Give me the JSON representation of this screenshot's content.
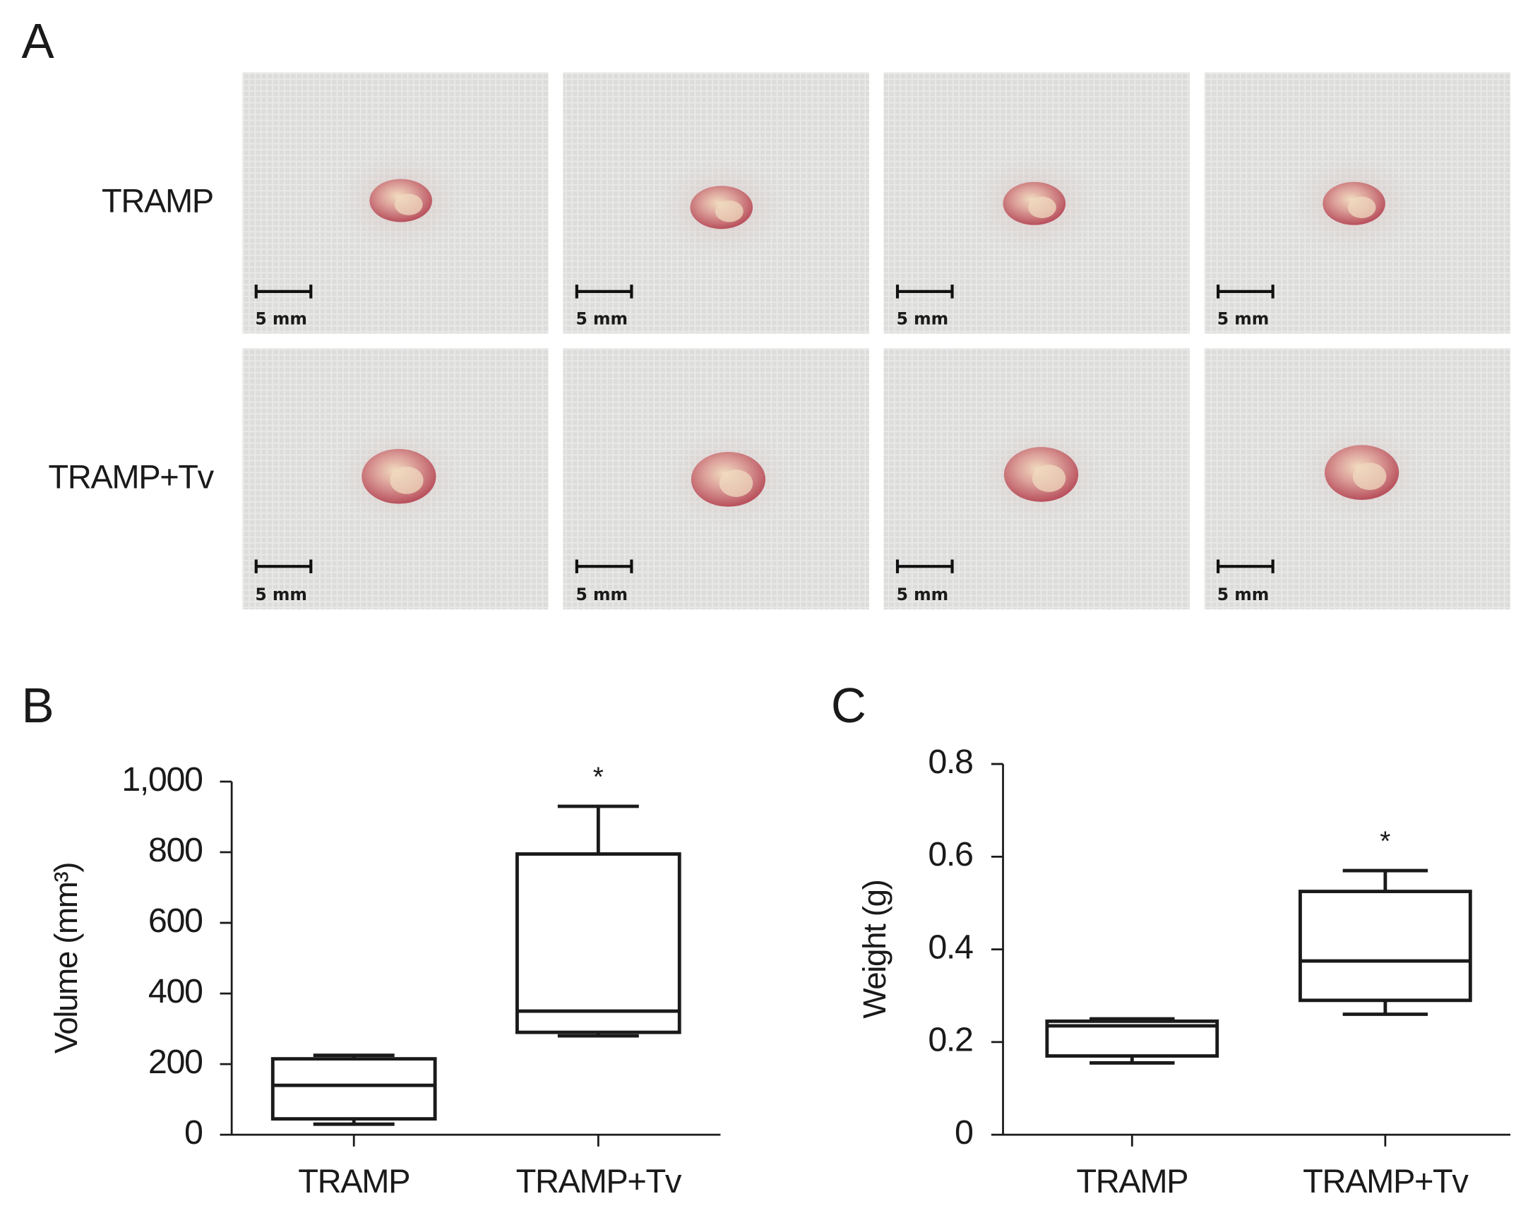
{
  "panel_a": {
    "label": "A",
    "rows": [
      {
        "label": "TRAMP",
        "scale_labels": [
          "5 mm",
          "5 mm",
          "5 mm",
          "5 mm"
        ]
      },
      {
        "label": "TRAMP+Tv",
        "scale_labels": [
          "5 mm",
          "5 mm",
          "5 mm",
          "5 mm"
        ]
      }
    ]
  },
  "chart_data": [
    {
      "type": "box",
      "panel": "B",
      "y_label": "Volume (mm³)",
      "categories": [
        "TRAMP",
        "TRAMP+Tv"
      ],
      "boxes": [
        {
          "min": 30,
          "q1": 45,
          "median": 140,
          "q3": 215,
          "max": 225
        },
        {
          "min": 280,
          "q1": 290,
          "median": 350,
          "q3": 795,
          "max": 930
        }
      ],
      "annotations": [
        null,
        "*"
      ],
      "ylim": [
        0,
        1000
      ],
      "yticks": [
        0,
        200,
        400,
        600,
        800,
        {
          "value": 1000,
          "label": "1,000"
        }
      ],
      "color": "#1a1a1a"
    },
    {
      "type": "box",
      "panel": "C",
      "y_label": "Weight (g)",
      "categories": [
        "TRAMP",
        "TRAMP+Tv"
      ],
      "boxes": [
        {
          "min": 0.155,
          "q1": 0.17,
          "median": 0.235,
          "q3": 0.245,
          "max": 0.25
        },
        {
          "min": 0.26,
          "q1": 0.29,
          "median": 0.375,
          "q3": 0.525,
          "max": 0.57
        }
      ],
      "annotations": [
        null,
        "*"
      ],
      "ylim": [
        0,
        0.8
      ],
      "yticks": [
        0,
        0.2,
        0.4,
        0.6,
        0.8
      ],
      "color": "#1a1a1a"
    }
  ]
}
